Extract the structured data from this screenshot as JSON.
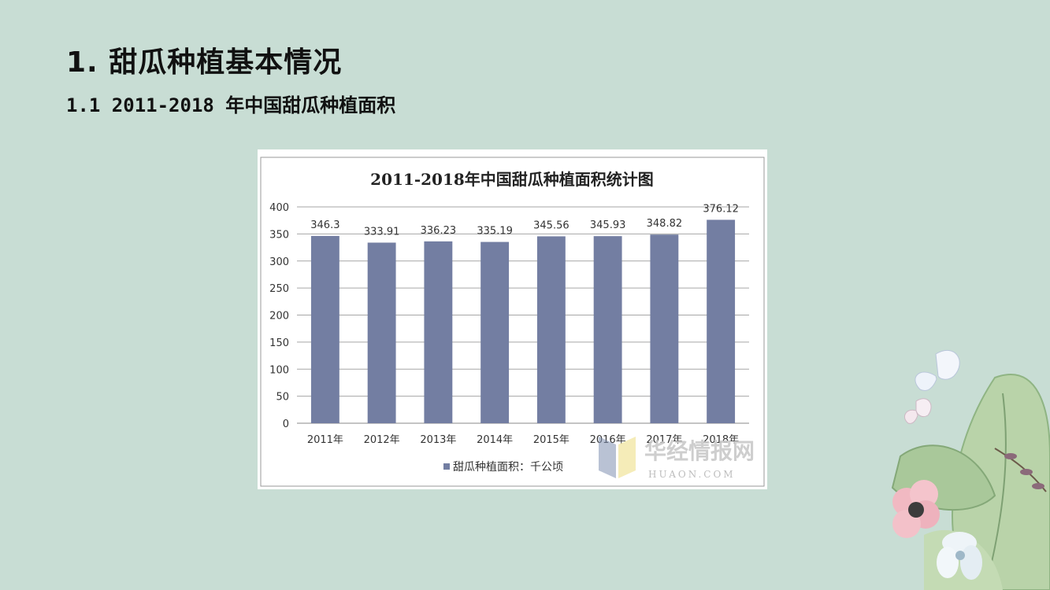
{
  "slide": {
    "heading": "1. 甜瓜种植基本情况",
    "subheading": "1.1 2011-2018 年中国甜瓜种植面积"
  },
  "colors": {
    "background": "#c8ddd4",
    "bar": "#737ea2"
  },
  "watermark": {
    "name": "华经情报网",
    "domain": "HUAON.COM"
  },
  "chart_data": {
    "type": "bar",
    "title": "2011-2018年中国甜瓜种植面积统计图",
    "categories": [
      "2011年",
      "2012年",
      "2013年",
      "2014年",
      "2015年",
      "2016年",
      "2017年",
      "2018年"
    ],
    "series": [
      {
        "name": "甜瓜种植面积：千公顷",
        "values": [
          346.3,
          333.91,
          336.23,
          335.19,
          345.56,
          345.93,
          348.82,
          376.12
        ]
      }
    ],
    "value_labels": [
      "346.3",
      "333.91",
      "336.23",
      "335.19",
      "345.56",
      "345.93",
      "348.82",
      "376.12"
    ],
    "ylim": [
      0,
      400
    ],
    "yticks": [
      "0",
      "50",
      "100",
      "150",
      "200",
      "250",
      "300",
      "350",
      "400"
    ],
    "grid": true,
    "legend_position": "bottom"
  }
}
